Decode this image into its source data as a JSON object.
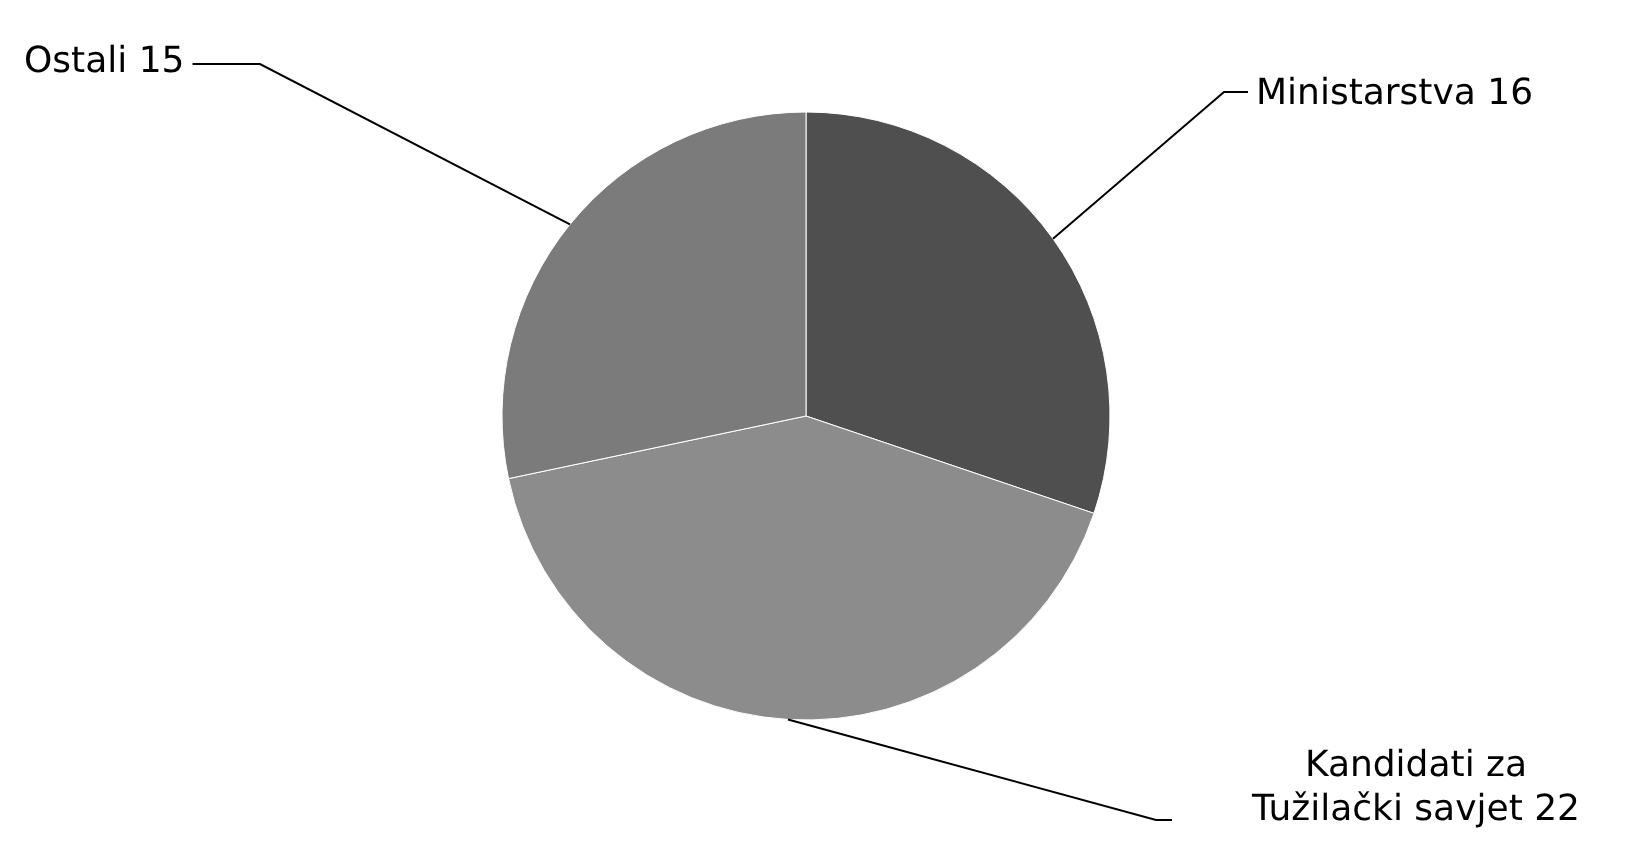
{
  "chart_data": {
    "type": "pie",
    "categories": [
      "Ministarstva",
      "Kandidati za Tužilački savjet",
      "Ostali"
    ],
    "values": [
      16,
      22,
      15
    ],
    "colors": [
      "#4f4f4f",
      "#8c8c8c",
      "#7b7b7b"
    ],
    "data_labels": true
  }
}
